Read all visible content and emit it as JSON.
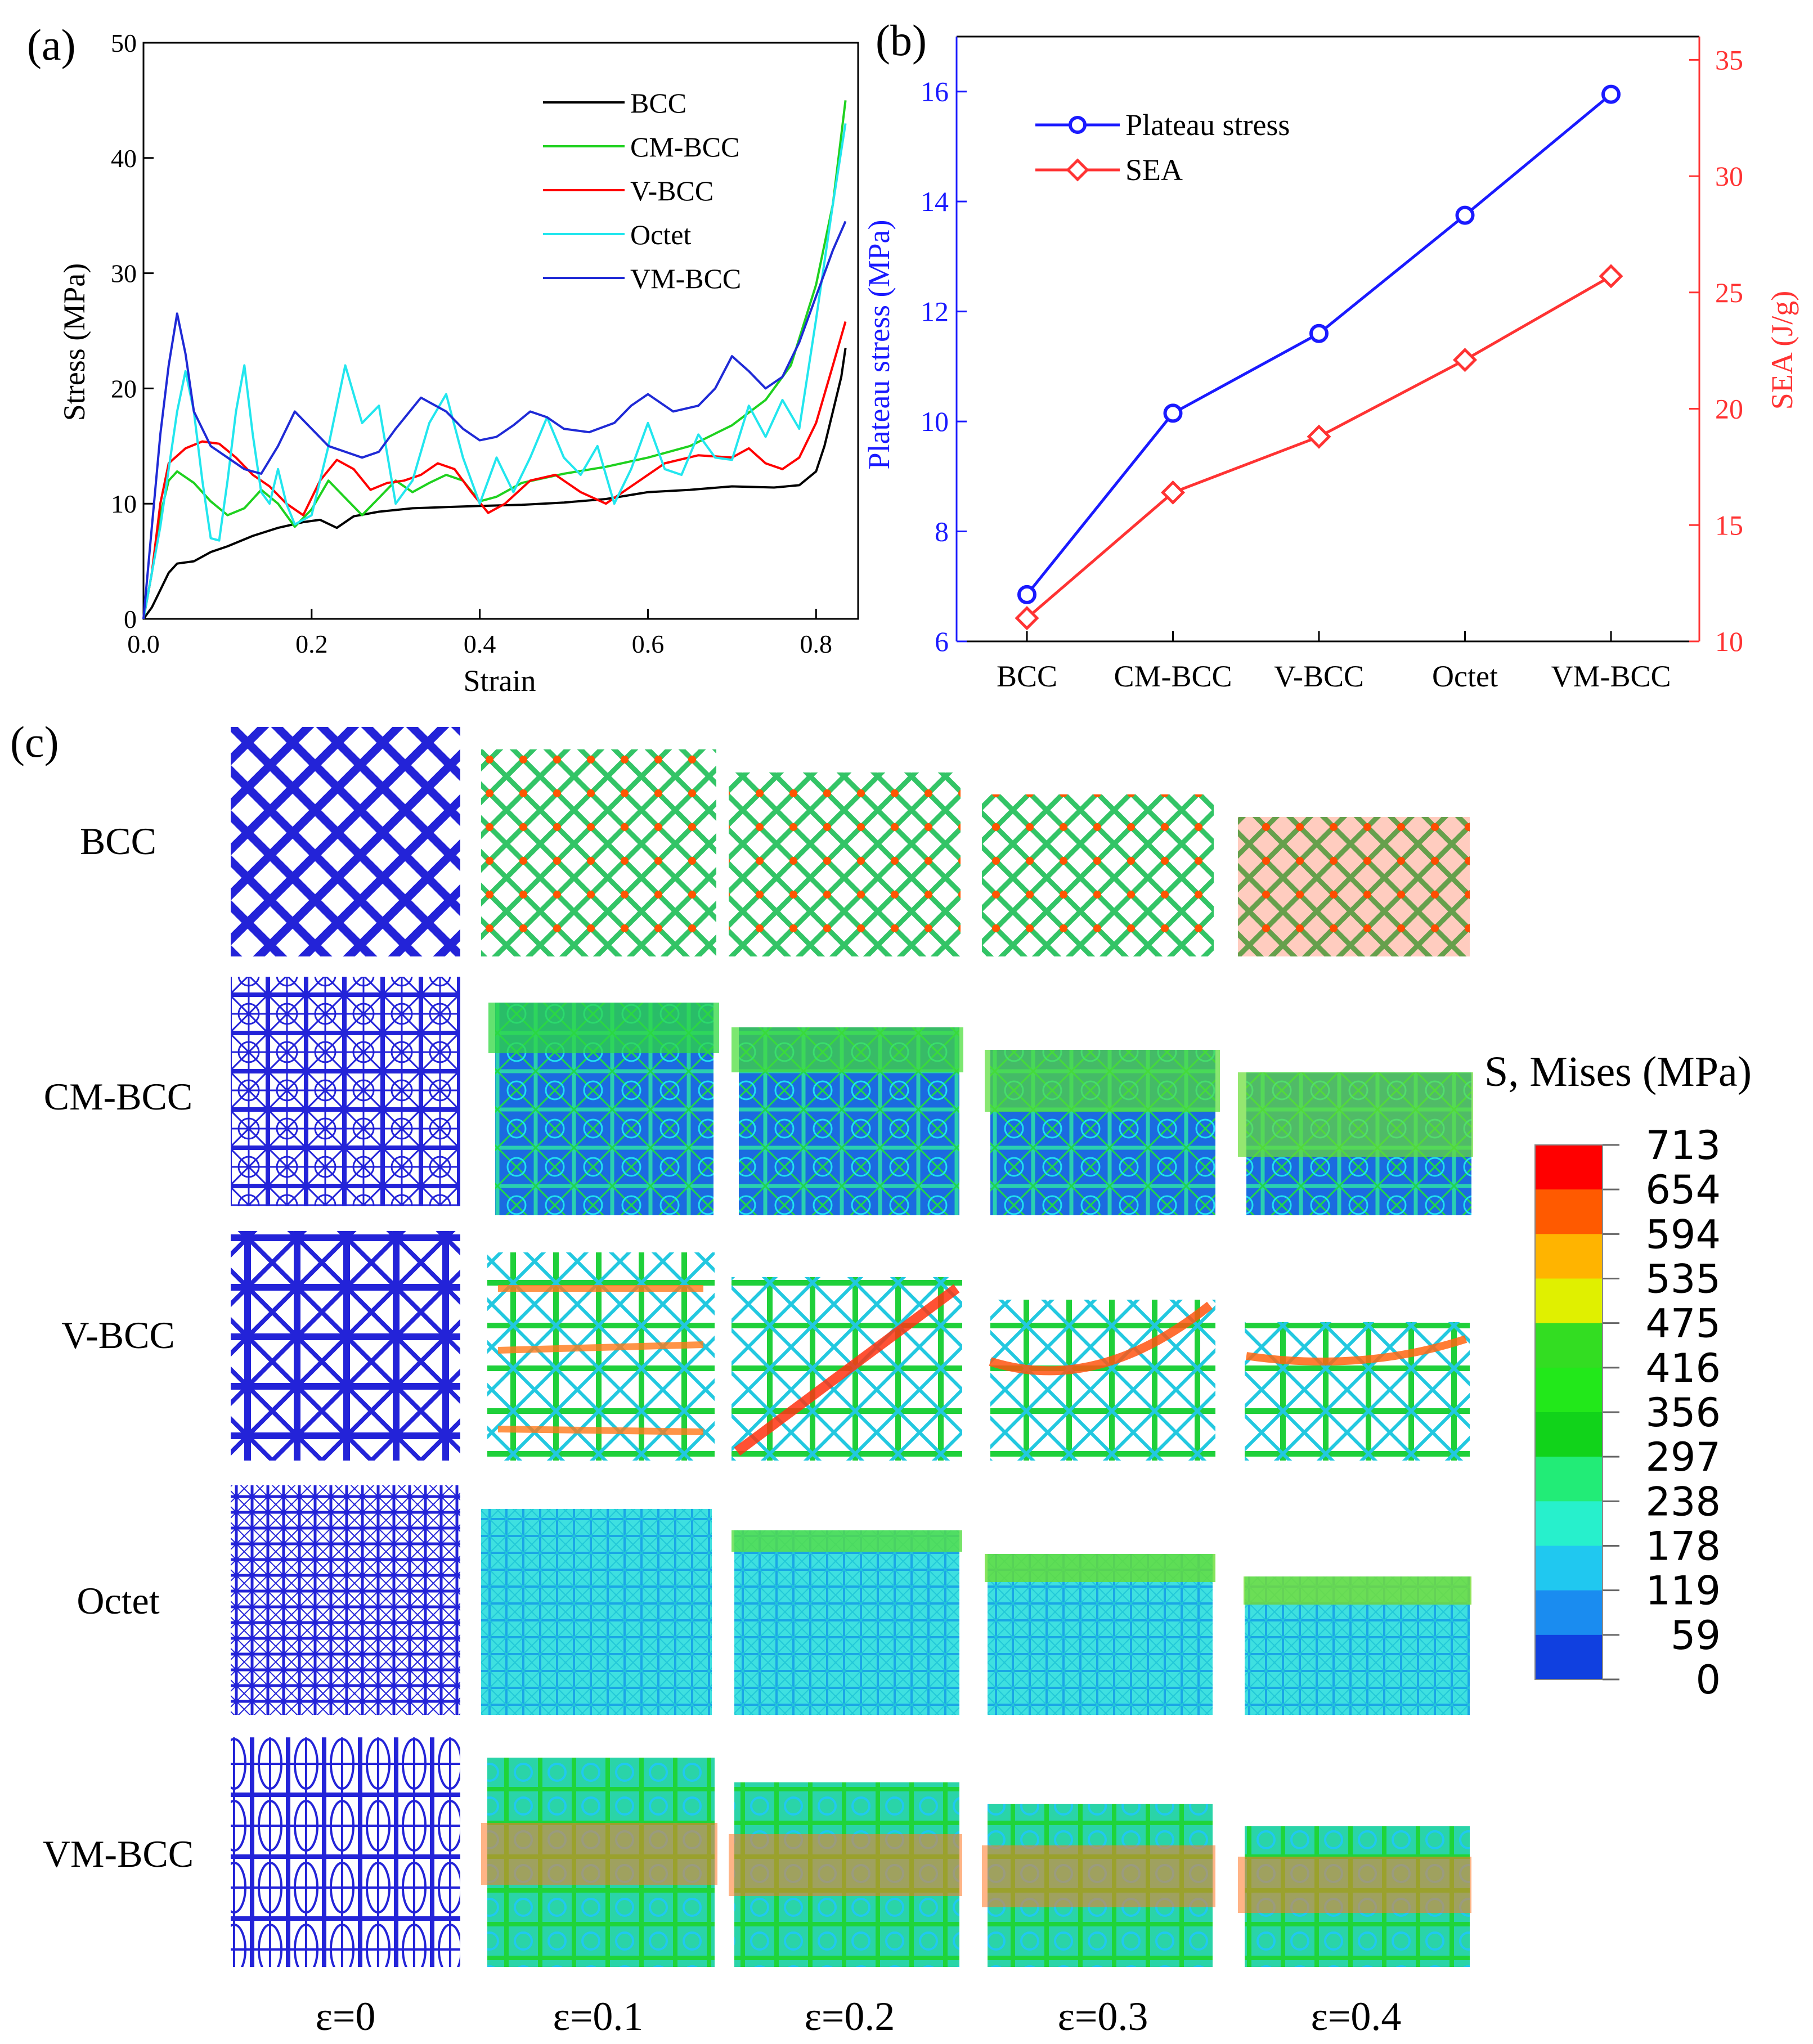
{
  "panels": {
    "a": "(a)",
    "b": "(b)",
    "c": "(c)"
  },
  "chart_data": [
    {
      "type": "line",
      "xlabel": "Strain",
      "ylabel": "Stress (MPa)",
      "xlim": [
        0,
        0.85
      ],
      "ylim": [
        0,
        50
      ],
      "x_ticks": [
        0,
        0.2,
        0.4,
        0.6,
        0.8
      ],
      "x_tick_labels": [
        "0.0",
        "0.2",
        "0.4",
        "0.6",
        "0.8"
      ],
      "y_ticks": [
        0,
        10,
        20,
        30,
        40,
        50
      ],
      "y_tick_labels": [
        "0",
        "10",
        "20",
        "30",
        "40",
        "50"
      ],
      "legend": "top-right",
      "series": [
        {
          "name": "BCC",
          "color": "#000000",
          "points": [
            [
              0,
              0
            ],
            [
              0.01,
              1
            ],
            [
              0.02,
              2.5
            ],
            [
              0.03,
              4
            ],
            [
              0.04,
              4.8
            ],
            [
              0.06,
              5
            ],
            [
              0.08,
              5.8
            ],
            [
              0.1,
              6.3
            ],
            [
              0.13,
              7.2
            ],
            [
              0.16,
              7.9
            ],
            [
              0.19,
              8.4
            ],
            [
              0.21,
              8.6
            ],
            [
              0.23,
              7.9
            ],
            [
              0.25,
              8.9
            ],
            [
              0.28,
              9.3
            ],
            [
              0.32,
              9.6
            ],
            [
              0.36,
              9.7
            ],
            [
              0.4,
              9.8
            ],
            [
              0.45,
              9.9
            ],
            [
              0.5,
              10.1
            ],
            [
              0.55,
              10.4
            ],
            [
              0.6,
              11
            ],
            [
              0.65,
              11.2
            ],
            [
              0.7,
              11.5
            ],
            [
              0.75,
              11.4
            ],
            [
              0.78,
              11.6
            ],
            [
              0.8,
              12.8
            ],
            [
              0.81,
              15
            ],
            [
              0.82,
              18
            ],
            [
              0.83,
              21
            ],
            [
              0.835,
              23.5
            ]
          ]
        },
        {
          "name": "CM-BCC",
          "color": "#1fd11f",
          "points": [
            [
              0,
              0
            ],
            [
              0.01,
              4
            ],
            [
              0.02,
              9
            ],
            [
              0.03,
              12
            ],
            [
              0.04,
              12.8
            ],
            [
              0.06,
              11.8
            ],
            [
              0.08,
              10.2
            ],
            [
              0.1,
              9
            ],
            [
              0.12,
              9.6
            ],
            [
              0.14,
              11.2
            ],
            [
              0.16,
              10
            ],
            [
              0.18,
              8
            ],
            [
              0.2,
              9.5
            ],
            [
              0.22,
              12
            ],
            [
              0.24,
              10.5
            ],
            [
              0.26,
              9
            ],
            [
              0.28,
              10.5
            ],
            [
              0.3,
              12
            ],
            [
              0.32,
              11
            ],
            [
              0.34,
              11.8
            ],
            [
              0.36,
              12.5
            ],
            [
              0.38,
              12
            ],
            [
              0.4,
              10.2
            ],
            [
              0.42,
              10.6
            ],
            [
              0.45,
              11.8
            ],
            [
              0.5,
              12.6
            ],
            [
              0.55,
              13.2
            ],
            [
              0.6,
              14
            ],
            [
              0.65,
              15
            ],
            [
              0.7,
              16.8
            ],
            [
              0.74,
              19
            ],
            [
              0.77,
              22
            ],
            [
              0.8,
              29
            ],
            [
              0.82,
              36
            ],
            [
              0.835,
              45
            ]
          ]
        },
        {
          "name": "V-BCC",
          "color": "#ff0000",
          "points": [
            [
              0,
              0
            ],
            [
              0.01,
              4
            ],
            [
              0.02,
              10
            ],
            [
              0.03,
              13.5
            ],
            [
              0.05,
              14.8
            ],
            [
              0.07,
              15.4
            ],
            [
              0.09,
              15.2
            ],
            [
              0.11,
              14
            ],
            [
              0.13,
              12.5
            ],
            [
              0.15,
              11.5
            ],
            [
              0.17,
              10
            ],
            [
              0.19,
              9
            ],
            [
              0.21,
              12
            ],
            [
              0.23,
              13.8
            ],
            [
              0.25,
              13
            ],
            [
              0.27,
              11.2
            ],
            [
              0.29,
              11.8
            ],
            [
              0.31,
              12
            ],
            [
              0.33,
              12.5
            ],
            [
              0.35,
              13.5
            ],
            [
              0.37,
              13
            ],
            [
              0.39,
              11
            ],
            [
              0.41,
              9.2
            ],
            [
              0.43,
              10
            ],
            [
              0.46,
              12
            ],
            [
              0.49,
              12.5
            ],
            [
              0.52,
              11
            ],
            [
              0.55,
              10
            ],
            [
              0.58,
              11.5
            ],
            [
              0.62,
              13.5
            ],
            [
              0.66,
              14.2
            ],
            [
              0.7,
              14
            ],
            [
              0.72,
              14.8
            ],
            [
              0.74,
              13.5
            ],
            [
              0.76,
              13
            ],
            [
              0.78,
              14
            ],
            [
              0.8,
              17
            ],
            [
              0.82,
              22
            ],
            [
              0.835,
              25.8
            ]
          ]
        },
        {
          "name": "Octet",
          "color": "#22e6ee",
          "points": [
            [
              0,
              0
            ],
            [
              0.01,
              4
            ],
            [
              0.02,
              8
            ],
            [
              0.03,
              13
            ],
            [
              0.04,
              18
            ],
            [
              0.05,
              21.5
            ],
            [
              0.06,
              18
            ],
            [
              0.07,
              12
            ],
            [
              0.08,
              7
            ],
            [
              0.09,
              6.8
            ],
            [
              0.1,
              12
            ],
            [
              0.11,
              18
            ],
            [
              0.12,
              22
            ],
            [
              0.13,
              16
            ],
            [
              0.14,
              11
            ],
            [
              0.15,
              10
            ],
            [
              0.16,
              13
            ],
            [
              0.17,
              10
            ],
            [
              0.18,
              8.2
            ],
            [
              0.2,
              9
            ],
            [
              0.22,
              15
            ],
            [
              0.24,
              22
            ],
            [
              0.26,
              17
            ],
            [
              0.28,
              18.5
            ],
            [
              0.3,
              10
            ],
            [
              0.32,
              12
            ],
            [
              0.34,
              17
            ],
            [
              0.36,
              19.5
            ],
            [
              0.38,
              14
            ],
            [
              0.4,
              10
            ],
            [
              0.42,
              14
            ],
            [
              0.44,
              11
            ],
            [
              0.46,
              14
            ],
            [
              0.48,
              17.5
            ],
            [
              0.5,
              14
            ],
            [
              0.52,
              12.5
            ],
            [
              0.54,
              15
            ],
            [
              0.56,
              10
            ],
            [
              0.58,
              13
            ],
            [
              0.6,
              17
            ],
            [
              0.62,
              13
            ],
            [
              0.64,
              12.5
            ],
            [
              0.66,
              16
            ],
            [
              0.68,
              14
            ],
            [
              0.7,
              13.8
            ],
            [
              0.72,
              18.5
            ],
            [
              0.74,
              15.8
            ],
            [
              0.76,
              19
            ],
            [
              0.78,
              16.5
            ],
            [
              0.8,
              26
            ],
            [
              0.82,
              36
            ],
            [
              0.835,
              43
            ]
          ]
        },
        {
          "name": "VM-BCC",
          "color": "#1f2ad6",
          "points": [
            [
              0,
              0
            ],
            [
              0.01,
              8
            ],
            [
              0.02,
              16
            ],
            [
              0.03,
              22
            ],
            [
              0.04,
              26.5
            ],
            [
              0.05,
              23
            ],
            [
              0.06,
              18
            ],
            [
              0.08,
              15
            ],
            [
              0.1,
              14
            ],
            [
              0.12,
              13
            ],
            [
              0.14,
              12.6
            ],
            [
              0.16,
              15
            ],
            [
              0.18,
              18
            ],
            [
              0.2,
              16.5
            ],
            [
              0.22,
              15
            ],
            [
              0.24,
              14.5
            ],
            [
              0.26,
              14
            ],
            [
              0.28,
              14.5
            ],
            [
              0.3,
              16.5
            ],
            [
              0.33,
              19.2
            ],
            [
              0.36,
              18
            ],
            [
              0.38,
              16.5
            ],
            [
              0.4,
              15.5
            ],
            [
              0.42,
              15.8
            ],
            [
              0.44,
              16.8
            ],
            [
              0.46,
              18
            ],
            [
              0.48,
              17.5
            ],
            [
              0.5,
              16.5
            ],
            [
              0.53,
              16.2
            ],
            [
              0.56,
              17
            ],
            [
              0.58,
              18.5
            ],
            [
              0.6,
              19.5
            ],
            [
              0.63,
              18
            ],
            [
              0.66,
              18.5
            ],
            [
              0.68,
              20
            ],
            [
              0.7,
              22.8
            ],
            [
              0.72,
              21.5
            ],
            [
              0.74,
              20
            ],
            [
              0.76,
              21
            ],
            [
              0.78,
              24
            ],
            [
              0.8,
              28
            ],
            [
              0.82,
              32
            ],
            [
              0.835,
              34.5
            ]
          ]
        }
      ]
    },
    {
      "type": "line",
      "categories": [
        "BCC",
        "CM-BCC",
        "V-BCC",
        "Octet",
        "VM-BCC"
      ],
      "ylabel": "Plateau stress (MPa)",
      "y2label": "SEA (J/g)",
      "ylim": [
        6,
        17
      ],
      "y2lim": [
        10,
        36
      ],
      "y_ticks": [
        6,
        8,
        10,
        12,
        14,
        16
      ],
      "y_tick_labels": [
        "6",
        "8",
        "10",
        "12",
        "14",
        "16"
      ],
      "y2_ticks": [
        10,
        15,
        20,
        25,
        30,
        35
      ],
      "y2_tick_labels": [
        "10",
        "15",
        "20",
        "25",
        "30",
        "35"
      ],
      "legend": "top-left",
      "series": [
        {
          "name": "Plateau stress",
          "axis": "left",
          "marker": "circle",
          "color": "#1a1aff",
          "values": [
            6.85,
            10.15,
            11.6,
            13.75,
            15.95
          ]
        },
        {
          "name": "SEA",
          "axis": "right",
          "marker": "diamond",
          "color": "#ff3333",
          "values": [
            11,
            16.4,
            18.8,
            22.1,
            25.7
          ]
        }
      ]
    }
  ],
  "panel_c": {
    "row_labels": [
      "BCC",
      "CM-BCC",
      "V-BCC",
      "Octet",
      "VM-BCC"
    ],
    "col_labels": [
      "ε=0",
      "ε=0.1",
      "ε=0.2",
      "ε=0.3",
      "ε=0.4"
    ],
    "colorbar": {
      "title": "S, Mises (MPa)",
      "labels": [
        "713",
        "654",
        "594",
        "535",
        "475",
        "416",
        "356",
        "297",
        "238",
        "178",
        "119",
        "59",
        "0"
      ],
      "colors": [
        "#ff0000",
        "#ff5a00",
        "#ffb400",
        "#e0f000",
        "#33dd22",
        "#22e81a",
        "#11d31a",
        "#22ec77",
        "#27f0cc",
        "#20c8f0",
        "#1a8cf0",
        "#1040e0"
      ]
    }
  }
}
